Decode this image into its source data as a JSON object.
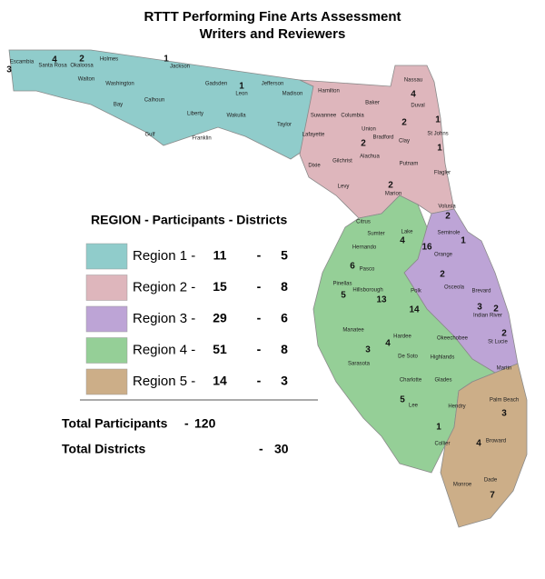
{
  "title": [
    "RTTT Performing Fine Arts Assessment",
    "Writers and Reviewers"
  ],
  "legend": {
    "header": "REGION  -  Participants - Districts",
    "separator": "-",
    "rows": [
      {
        "label": "Region 1 -",
        "participants": 11,
        "districts": 5,
        "color": "#90cccb"
      },
      {
        "label": "Region 2 -",
        "participants": 15,
        "districts": 8,
        "color": "#deb6bc"
      },
      {
        "label": "Region 3 -",
        "participants": 29,
        "districts": 6,
        "color": "#bda4d6"
      },
      {
        "label": "Region 4 -",
        "participants": 51,
        "districts": 8,
        "color": "#95cf97"
      },
      {
        "label": "Region 5 -",
        "participants": 14,
        "districts": 3,
        "color": "#ccae88"
      }
    ]
  },
  "totals": {
    "participants_label": "Total Participants",
    "participants": 120,
    "districts_label": "Total Districts",
    "districts": 30
  },
  "counties": [
    {
      "name": "Escambia",
      "participants": 3
    },
    {
      "name": "Santa Rosa",
      "participants": 4
    },
    {
      "name": "Okaloosa",
      "participants": 2
    },
    {
      "name": "Walton"
    },
    {
      "name": "Holmes"
    },
    {
      "name": "Jackson",
      "participants": 1
    },
    {
      "name": "Washington"
    },
    {
      "name": "Bay"
    },
    {
      "name": "Calhoun"
    },
    {
      "name": "Gadsden"
    },
    {
      "name": "Leon",
      "participants": 1
    },
    {
      "name": "Jefferson"
    },
    {
      "name": "Madison"
    },
    {
      "name": "Liberty"
    },
    {
      "name": "Wakulla"
    },
    {
      "name": "Taylor"
    },
    {
      "name": "Gulf"
    },
    {
      "name": "Franklin"
    },
    {
      "name": "Hamilton"
    },
    {
      "name": "Baker"
    },
    {
      "name": "Nassau"
    },
    {
      "name": "Duval",
      "participants": 4
    },
    {
      "name": "Suwannee"
    },
    {
      "name": "Columbia"
    },
    {
      "name": "Lafayette"
    },
    {
      "name": "Union"
    },
    {
      "name": "Bradford"
    },
    {
      "name": "Clay",
      "participants": 2
    },
    {
      "name": "St Johns",
      "participants": 1
    },
    {
      "name": "Dixie"
    },
    {
      "name": "Gilchrist"
    },
    {
      "name": "Alachua",
      "participants": 2
    },
    {
      "name": "Putnam"
    },
    {
      "name": "Flagler",
      "participants": 1
    },
    {
      "name": "Levy"
    },
    {
      "name": "Marion",
      "participants": 2
    },
    {
      "name": "Volusia",
      "participants": 2
    },
    {
      "name": "Citrus"
    },
    {
      "name": "Lake",
      "participants": 4
    },
    {
      "name": "Seminole",
      "participants": 1
    },
    {
      "name": "Sumter"
    },
    {
      "name": "Hernando"
    },
    {
      "name": "Orange",
      "participants": 16
    },
    {
      "name": "Pasco",
      "participants": 6
    },
    {
      "name": "Pinellas",
      "participants": 5
    },
    {
      "name": "Hillsborough",
      "participants": 13
    },
    {
      "name": "Polk",
      "participants": 14
    },
    {
      "name": "Osceola",
      "participants": 2
    },
    {
      "name": "Brevard",
      "participants": 3
    },
    {
      "name": "Indian River",
      "participants": 2
    },
    {
      "name": "St Lucie",
      "participants": 2
    },
    {
      "name": "Manatee",
      "participants": 4
    },
    {
      "name": "Hardee"
    },
    {
      "name": "Okeechobee"
    },
    {
      "name": "De Soto"
    },
    {
      "name": "Highlands"
    },
    {
      "name": "Sarasota",
      "participants": 3
    },
    {
      "name": "Martin"
    },
    {
      "name": "Charlotte"
    },
    {
      "name": "Glades"
    },
    {
      "name": "Palm Beach",
      "participants": 3
    },
    {
      "name": "Lee",
      "participants": 5
    },
    {
      "name": "Hendry"
    },
    {
      "name": "Collier",
      "participants": 1
    },
    {
      "name": "Broward",
      "participants": 4
    },
    {
      "name": "Monroe"
    },
    {
      "name": "Dade",
      "participants": 7
    }
  ]
}
